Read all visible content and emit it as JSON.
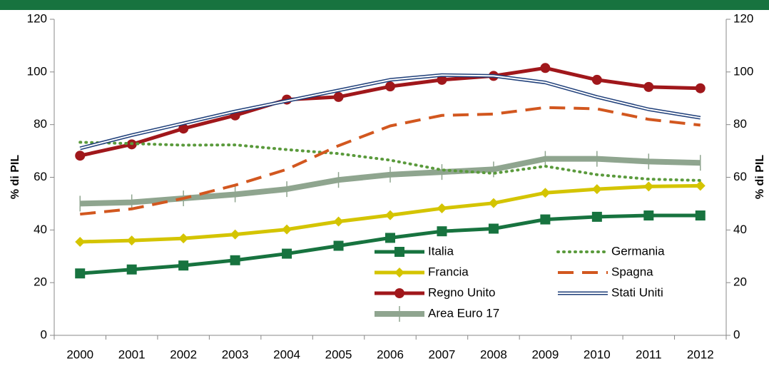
{
  "chart_data": {
    "type": "line",
    "categories": [
      "2000",
      "2001",
      "2002",
      "2003",
      "2004",
      "2005",
      "2006",
      "2007",
      "2008",
      "2009",
      "2010",
      "2011",
      "2012"
    ],
    "y_label": "% di PIL",
    "y2_label": "% di PIL",
    "ylim": [
      0,
      120
    ],
    "yticks": [
      0,
      20,
      40,
      60,
      80,
      100,
      120
    ],
    "y2lim": [
      0,
      120
    ],
    "y2ticks": [
      0,
      20,
      40,
      60,
      80,
      100,
      120
    ],
    "legend": "lower right",
    "series": [
      {
        "name": "Italia",
        "color": "#17733f",
        "line_style": "solid",
        "marker": "square",
        "values": [
          23.5,
          25,
          26.5,
          28.5,
          31,
          34,
          37,
          39.5,
          40.5,
          44,
          45,
          45.5,
          45.5
        ]
      },
      {
        "name": "Francia",
        "color": "#d4c400",
        "line_style": "solid",
        "marker": "diamond",
        "values": [
          35.5,
          36,
          36.8,
          38.3,
          40.2,
          43.2,
          45.6,
          48.2,
          50.2,
          54.1,
          55.5,
          56.5,
          56.8
        ]
      },
      {
        "name": "Regno Unito",
        "color": "#a0171b",
        "line_style": "solid",
        "marker": "circle",
        "values": [
          68.2,
          72.5,
          78.5,
          83.5,
          89.5,
          90.5,
          94.5,
          97,
          98.5,
          101.5,
          97,
          94.3,
          93.8
        ]
      },
      {
        "name": "Area Euro 17",
        "color": "#8fa58f",
        "line_style": "thick",
        "marker": "plus",
        "values": [
          50,
          50.5,
          52,
          53.5,
          55.5,
          59,
          61,
          62,
          63,
          67,
          67,
          66,
          65.5
        ]
      },
      {
        "name": "Germania",
        "color": "#5a9a3c",
        "line_style": "dotted",
        "values": [
          73.3,
          72.8,
          72.2,
          72.3,
          70.5,
          69,
          66.5,
          62.8,
          61.5,
          64.2,
          61,
          59.3,
          58.8
        ]
      },
      {
        "name": "Spagna",
        "color": "#d2571f",
        "line_style": "dashed",
        "values": [
          46,
          48,
          52,
          57,
          63,
          72,
          79.5,
          83.5,
          84,
          86.5,
          86,
          82,
          79.8
        ]
      },
      {
        "name": "Stati Uniti",
        "color": "#1f3f7a",
        "line_style": "double",
        "values": [
          71,
          76,
          80.5,
          85,
          89,
          93,
          97,
          98.8,
          98.5,
          96,
          90.5,
          85.8,
          82.6
        ]
      }
    ]
  }
}
